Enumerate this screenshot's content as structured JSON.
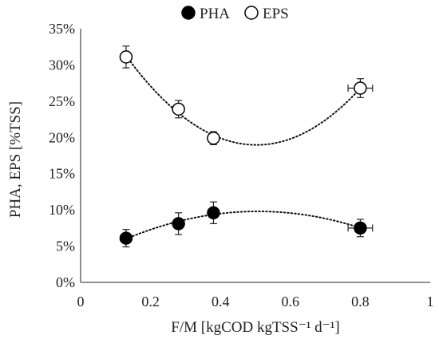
{
  "chart_data": {
    "type": "scatter",
    "legend": {
      "position": "top"
    },
    "x_axis": {
      "label": "F/M [kgCOD kgTSS⁻¹ d⁻¹]",
      "min": 0,
      "max": 1,
      "ticks": [
        0,
        0.2,
        0.4,
        0.6,
        0.8,
        1
      ],
      "tick_labels": [
        "0",
        "0.2",
        "0.4",
        "0.6",
        "0.8",
        "1"
      ]
    },
    "y_axis": {
      "label": "PHA, EPS [%TSS]",
      "min": 0,
      "max": 35,
      "ticks": [
        0,
        5,
        10,
        15,
        20,
        25,
        30,
        35
      ],
      "tick_labels": [
        "0%",
        "5%",
        "10%",
        "15%",
        "20%",
        "25%",
        "30%",
        "35%"
      ]
    },
    "grid": false,
    "series": [
      {
        "name": "PHA",
        "marker": "filled-circle",
        "color": "#000000",
        "points": [
          {
            "x": 0.13,
            "y": 6.1,
            "yerr": 1.2,
            "xerr": 0
          },
          {
            "x": 0.28,
            "y": 8.1,
            "yerr": 1.5,
            "xerr": 0
          },
          {
            "x": 0.38,
            "y": 9.6,
            "yerr": 1.5,
            "xerr": 0
          },
          {
            "x": 0.8,
            "y": 7.5,
            "yerr": 1.2,
            "xerr": 0.035
          }
        ],
        "trendline": {
          "type": "polynomial-2",
          "style": "dotted"
        }
      },
      {
        "name": "EPS",
        "marker": "open-circle",
        "color": "#000000",
        "points": [
          {
            "x": 0.13,
            "y": 31.1,
            "yerr": 1.5,
            "xerr": 0
          },
          {
            "x": 0.28,
            "y": 23.9,
            "yerr": 1.2,
            "xerr": 0
          },
          {
            "x": 0.38,
            "y": 19.9,
            "yerr": 0.9,
            "xerr": 0
          },
          {
            "x": 0.8,
            "y": 26.8,
            "yerr": 1.3,
            "xerr": 0.035
          }
        ],
        "trendline": {
          "type": "polynomial-2",
          "style": "dotted"
        }
      }
    ]
  }
}
